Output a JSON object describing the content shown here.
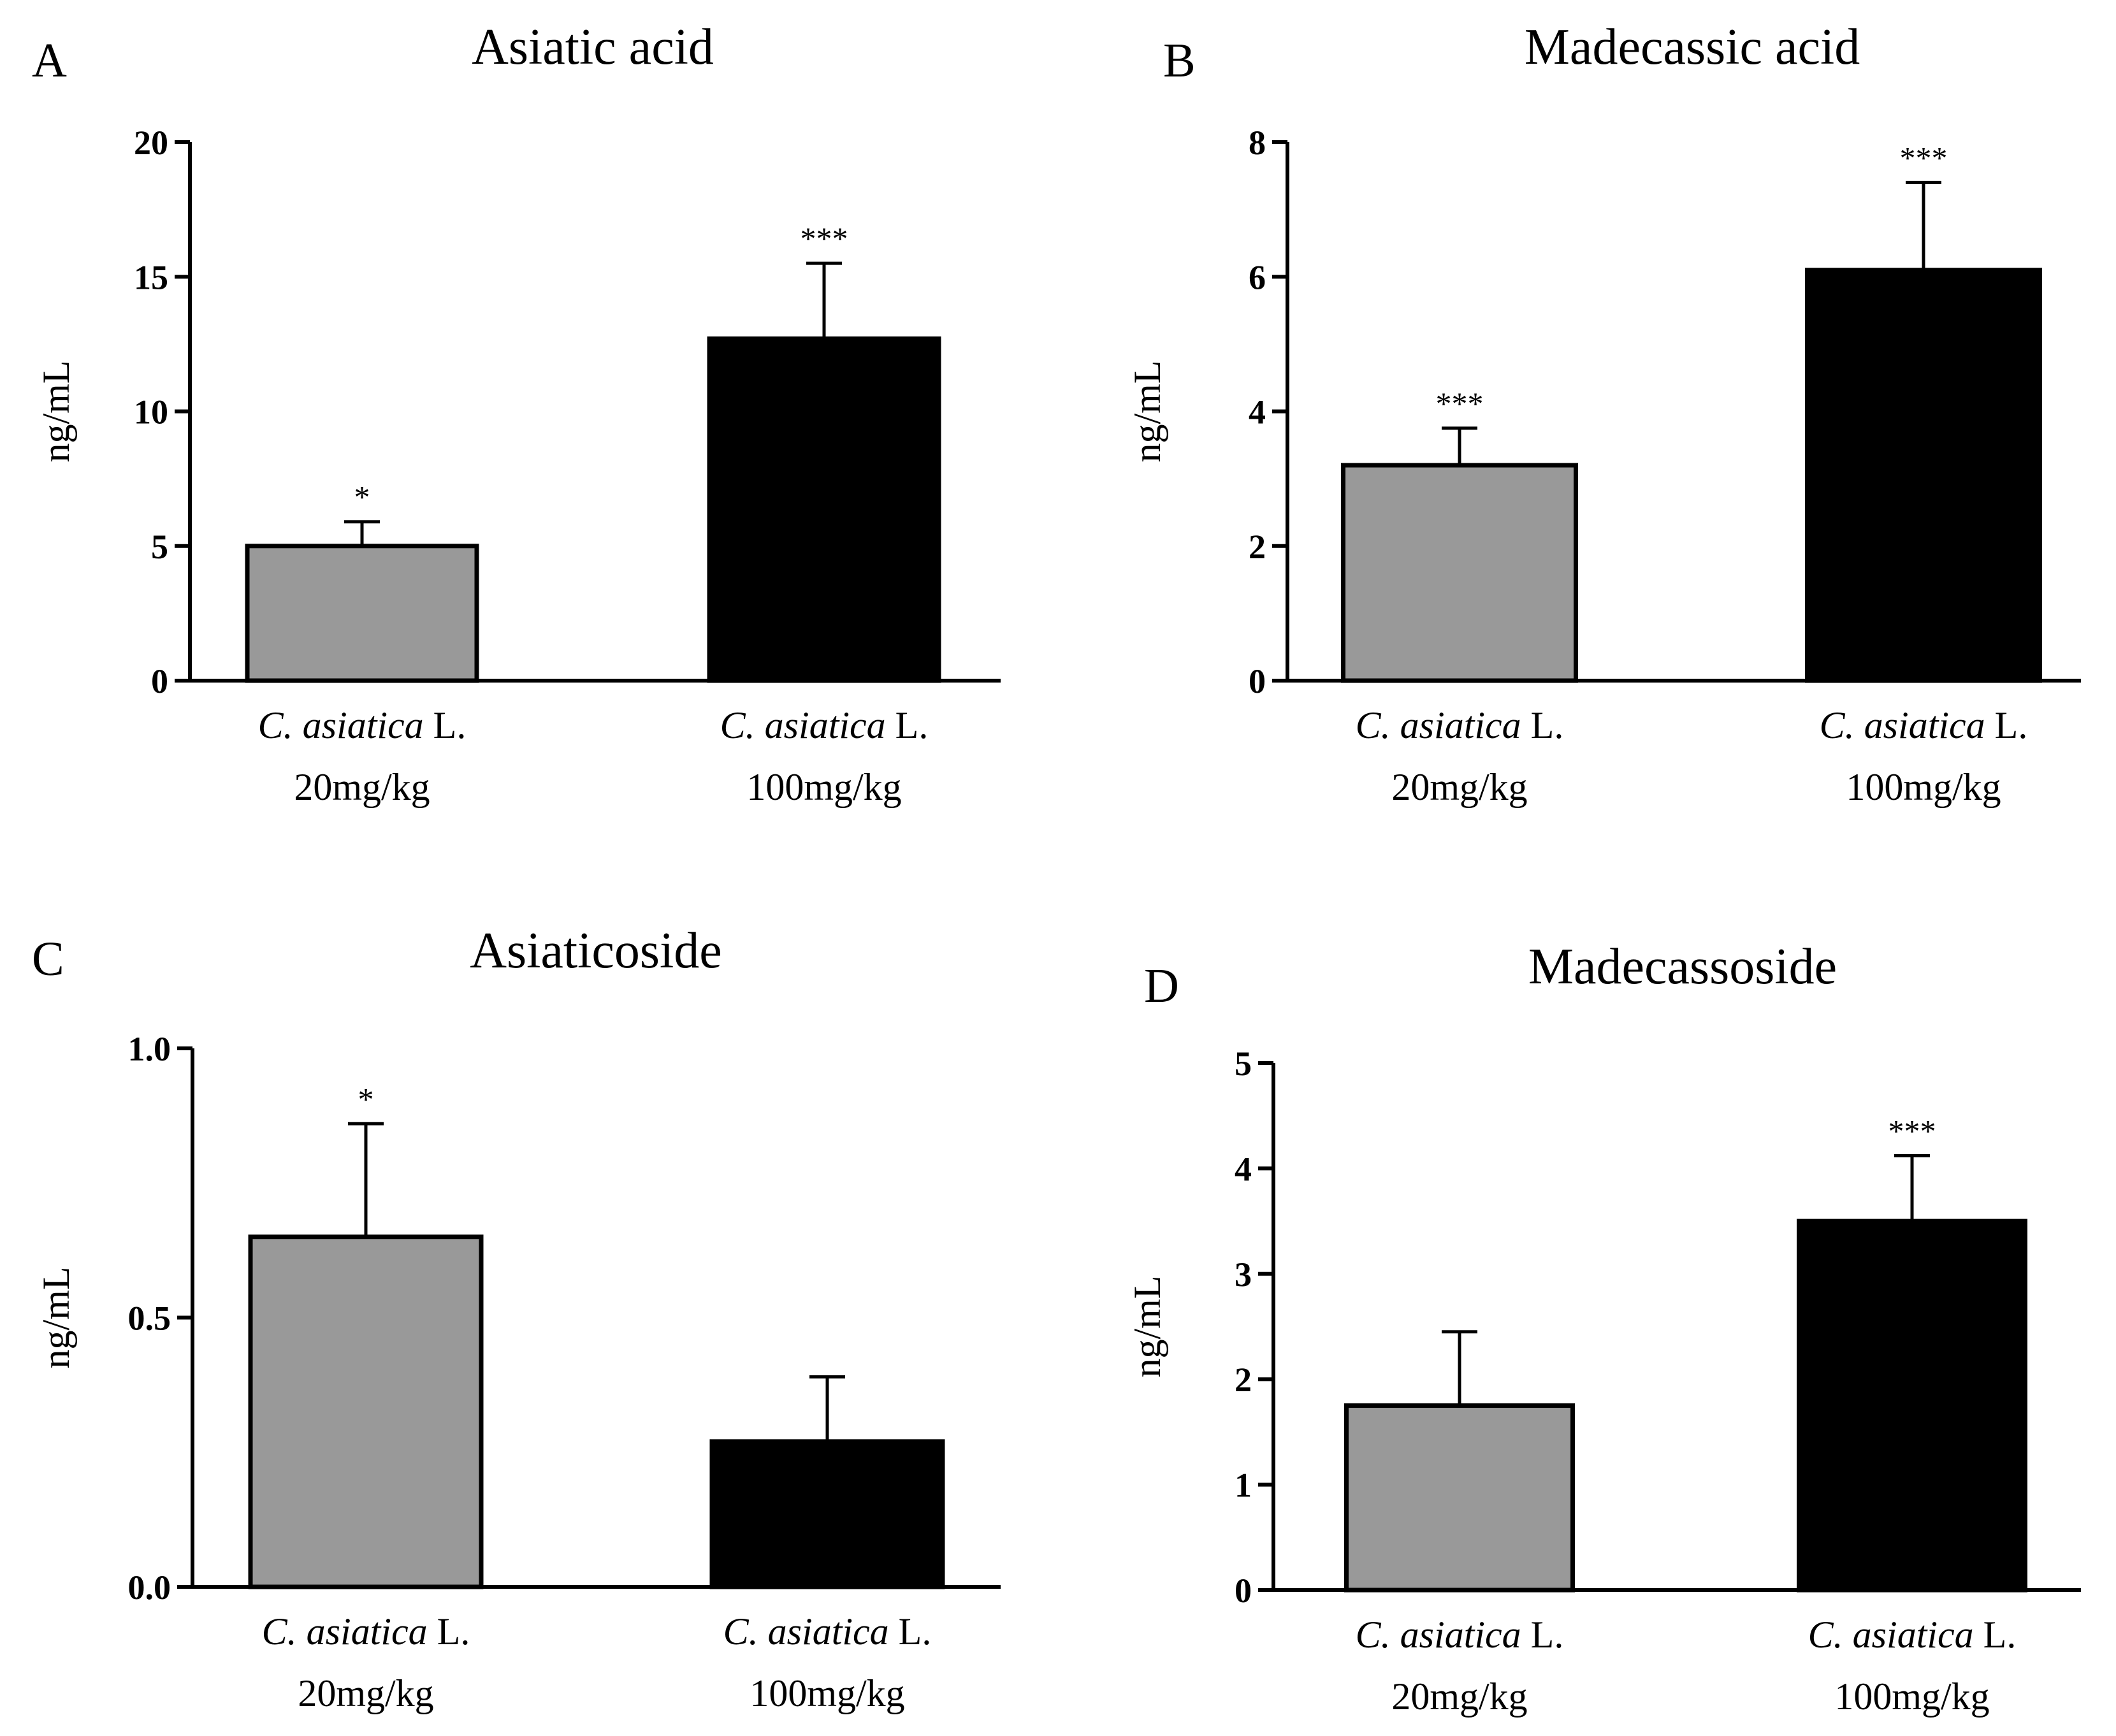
{
  "figure": {
    "type": "multi-panel bar chart"
  },
  "chart_data": [
    {
      "panel": "A",
      "type": "bar",
      "title": "Asiatic acid",
      "ylabel": "ng/mL",
      "ylim": [
        0,
        20
      ],
      "yticks": [
        0,
        5,
        10,
        15,
        20
      ],
      "ytick_labels": [
        "0",
        "5",
        "10",
        "15",
        "20"
      ],
      "categories": [
        {
          "species": "C. asiatica",
          "suffix": " L.",
          "dose": "20mg/kg"
        },
        {
          "species": "C. asiatica",
          "suffix": " L.",
          "dose": "100mg/kg"
        }
      ],
      "values": [
        5.0,
        12.7
      ],
      "errors": [
        0.9,
        2.8
      ],
      "colors": [
        "#999999",
        "#000000"
      ],
      "significance": [
        "*",
        "***"
      ]
    },
    {
      "panel": "B",
      "type": "bar",
      "title": "Madecassic acid",
      "ylabel": "ng/mL",
      "ylim": [
        0,
        8
      ],
      "yticks": [
        0,
        2,
        4,
        6,
        8
      ],
      "ytick_labels": [
        "0",
        "2",
        "4",
        "6",
        "8"
      ],
      "categories": [
        {
          "species": "C. asiatica",
          "suffix": " L.",
          "dose": "20mg/kg"
        },
        {
          "species": "C. asiatica",
          "suffix": " L.",
          "dose": "100mg/kg"
        }
      ],
      "values": [
        3.2,
        6.1
      ],
      "errors": [
        0.55,
        1.3
      ],
      "colors": [
        "#999999",
        "#000000"
      ],
      "significance": [
        "***",
        "***"
      ]
    },
    {
      "panel": "C",
      "type": "bar",
      "title": "Asiaticoside",
      "ylabel": "ng/mL",
      "ylim": [
        0,
        1.0
      ],
      "yticks": [
        0,
        0.5,
        1.0
      ],
      "ytick_labels": [
        "0.0",
        "0.5",
        "1.0"
      ],
      "categories": [
        {
          "species": "C. asiatica",
          "suffix": " L.",
          "dose": "20mg/kg"
        },
        {
          "species": "C. asiatica",
          "suffix": " L.",
          "dose": "100mg/kg"
        }
      ],
      "values": [
        0.65,
        0.27
      ],
      "errors": [
        0.21,
        0.12
      ],
      "colors": [
        "#999999",
        "#000000"
      ],
      "significance": [
        "*",
        ""
      ]
    },
    {
      "panel": "D",
      "type": "bar",
      "title": "Madecassoside",
      "ylabel": "ng/mL",
      "ylim": [
        0,
        5
      ],
      "yticks": [
        0,
        1,
        2,
        3,
        4,
        5
      ],
      "ytick_labels": [
        "0",
        "1",
        "2",
        "3",
        "4",
        "5"
      ],
      "categories": [
        {
          "species": "C. asiatica",
          "suffix": " L.",
          "dose": "20mg/kg"
        },
        {
          "species": "C. asiatica",
          "suffix": " L.",
          "dose": "100mg/kg"
        }
      ],
      "values": [
        1.75,
        3.5
      ],
      "errors": [
        0.7,
        0.62
      ],
      "colors": [
        "#999999",
        "#000000"
      ],
      "significance": [
        "",
        "***"
      ]
    }
  ]
}
